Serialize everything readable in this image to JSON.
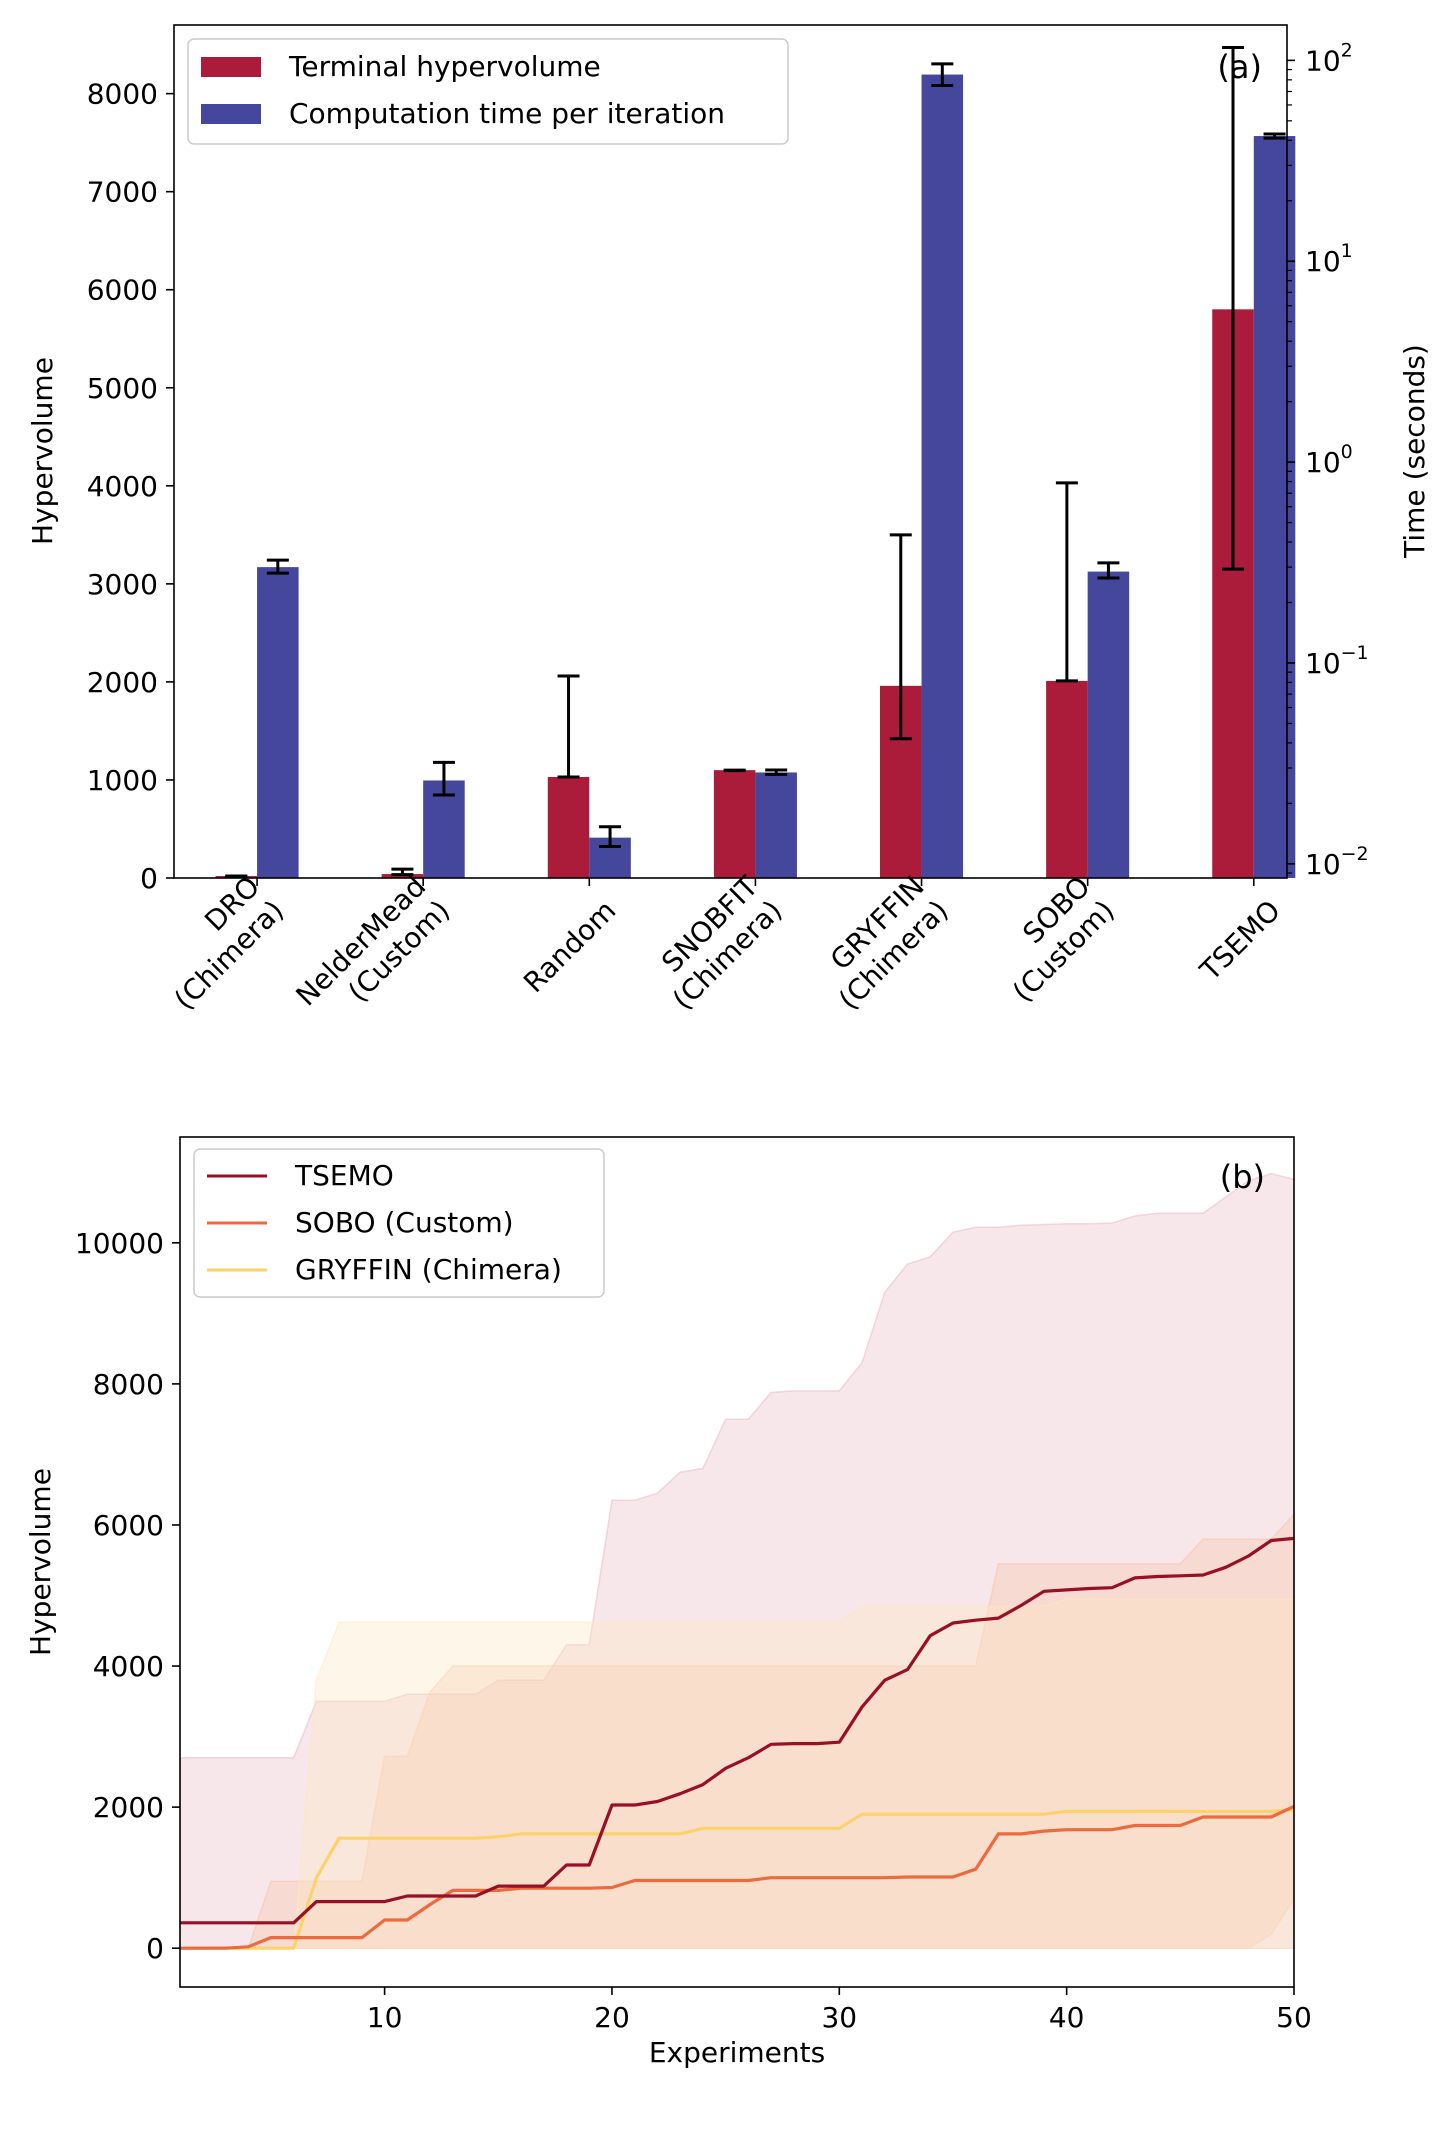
{
  "chart_data": [
    {
      "type": "bar",
      "panel_label": "(a)",
      "ylabel": "Hypervolume",
      "ylabel_right": "Time (seconds)",
      "ylim": [
        0,
        8700
      ],
      "y_ticks": [
        0,
        1000,
        2000,
        3000,
        4000,
        5000,
        6000,
        7000,
        8000
      ],
      "y2_scale": "log",
      "y2lim": [
        0.0085,
        150
      ],
      "y2_ticks": [
        {
          "value": 0.01,
          "base": "10",
          "exp": "−2"
        },
        {
          "value": 0.1,
          "base": "10",
          "exp": "−1"
        },
        {
          "value": 1,
          "base": "10",
          "exp": "0"
        },
        {
          "value": 10,
          "base": "10",
          "exp": "1"
        },
        {
          "value": 100,
          "base": "10",
          "exp": "2"
        }
      ],
      "categories": [
        [
          "DRO",
          "(Chimera)"
        ],
        [
          "NelderMead",
          "(Custom)"
        ],
        [
          "Random"
        ],
        [
          "SNOBFIT",
          "(Chimera)"
        ],
        [
          "GRYFFIN",
          "(Chimera)"
        ],
        [
          "SOBO",
          "(Custom)"
        ],
        [
          "TSEMO"
        ]
      ],
      "legend_position": "top-left",
      "series": [
        {
          "name": "Terminal hypervolume",
          "axis": "left",
          "color": "#aa1c3a",
          "values": [
            20,
            40,
            1030,
            1100,
            1960,
            2010,
            5800
          ],
          "err_low": [
            20,
            35,
            1030,
            1095,
            1420,
            2010,
            3150
          ],
          "err_high": [
            20,
            90,
            2060,
            1100,
            3500,
            4030,
            8470
          ]
        },
        {
          "name": "Computation time per iteration",
          "axis": "right",
          "color": "#45479c",
          "values": [
            0.3,
            0.026,
            0.0135,
            0.0285,
            85,
            0.285,
            42
          ],
          "err_low": [
            0.28,
            0.022,
            0.0122,
            0.0279,
            75,
            0.265,
            41
          ],
          "err_high": [
            0.325,
            0.032,
            0.0153,
            0.0293,
            96,
            0.315,
            43
          ]
        }
      ]
    },
    {
      "type": "line",
      "panel_label": "(b)",
      "xlabel": "Experiments",
      "ylabel": "Hypervolume",
      "xlim": [
        1,
        50
      ],
      "ylim": [
        -550,
        11500
      ],
      "x_ticks": [
        10,
        20,
        30,
        40,
        50
      ],
      "y_ticks": [
        0,
        2000,
        4000,
        6000,
        8000,
        10000
      ],
      "legend_position": "top-left",
      "series": [
        {
          "name": "TSEMO",
          "color": "#990f26",
          "band_color": "#e8b7c2",
          "x": [
            1,
            2,
            3,
            4,
            5,
            6,
            7,
            8,
            9,
            10,
            11,
            12,
            13,
            14,
            15,
            16,
            17,
            18,
            19,
            20,
            21,
            22,
            23,
            24,
            25,
            26,
            27,
            28,
            29,
            30,
            31,
            32,
            33,
            34,
            35,
            36,
            37,
            38,
            39,
            40,
            41,
            42,
            43,
            44,
            45,
            46,
            47,
            48,
            49,
            50
          ],
          "values": [
            360,
            360,
            360,
            360,
            360,
            360,
            660,
            660,
            660,
            660,
            740,
            740,
            740,
            740,
            880,
            880,
            880,
            1180,
            1180,
            2030,
            2030,
            2080,
            2190,
            2320,
            2550,
            2700,
            2890,
            2900,
            2900,
            2920,
            3420,
            3800,
            3950,
            4430,
            4610,
            4650,
            4680,
            4860,
            5060,
            5080,
            5100,
            5110,
            5250,
            5270,
            5280,
            5290,
            5400,
            5560,
            5780,
            5810
          ],
          "band_low": [
            0,
            0,
            0,
            0,
            0,
            0,
            0,
            0,
            0,
            0,
            0,
            0,
            0,
            0,
            0,
            0,
            0,
            0,
            0,
            0,
            0,
            0,
            0,
            0,
            0,
            0,
            0,
            0,
            0,
            0,
            0,
            0,
            0,
            0,
            0,
            0,
            0,
            0,
            0,
            0,
            0,
            0,
            0,
            0,
            0,
            0,
            0,
            0,
            0,
            0
          ],
          "band_high": [
            2700,
            2700,
            2700,
            2700,
            2700,
            2700,
            3500,
            3500,
            3500,
            3500,
            3600,
            3600,
            3600,
            3600,
            3800,
            3800,
            3800,
            4300,
            4300,
            6350,
            6350,
            6450,
            6750,
            6800,
            7500,
            7500,
            7880,
            7900,
            7900,
            7900,
            8300,
            9300,
            9700,
            9800,
            10150,
            10220,
            10220,
            10250,
            10260,
            10270,
            10270,
            10280,
            10380,
            10420,
            10420,
            10420,
            10650,
            10880,
            10980,
            10900
          ]
        },
        {
          "name": "SOBO (Custom)",
          "color": "#ec6a3f",
          "band_color": "#f7c4a6",
          "x": [
            1,
            2,
            3,
            4,
            5,
            6,
            7,
            8,
            9,
            10,
            11,
            12,
            13,
            14,
            15,
            16,
            17,
            18,
            19,
            20,
            21,
            22,
            23,
            24,
            25,
            26,
            27,
            28,
            29,
            30,
            31,
            32,
            33,
            34,
            35,
            36,
            37,
            38,
            39,
            40,
            41,
            42,
            43,
            44,
            45,
            46,
            47,
            48,
            49,
            50
          ],
          "values": [
            0,
            0,
            0,
            20,
            150,
            150,
            150,
            150,
            150,
            400,
            400,
            620,
            820,
            820,
            820,
            850,
            850,
            850,
            850,
            860,
            960,
            960,
            960,
            960,
            960,
            960,
            1000,
            1000,
            1000,
            1000,
            1000,
            1000,
            1010,
            1010,
            1010,
            1120,
            1620,
            1620,
            1660,
            1680,
            1680,
            1680,
            1740,
            1740,
            1740,
            1860,
            1860,
            1860,
            1860,
            2010
          ],
          "band_low": [
            0,
            0,
            0,
            0,
            0,
            0,
            0,
            0,
            0,
            0,
            0,
            0,
            0,
            0,
            0,
            0,
            0,
            0,
            0,
            0,
            0,
            0,
            0,
            0,
            0,
            0,
            0,
            0,
            0,
            0,
            0,
            0,
            0,
            0,
            0,
            0,
            0,
            0,
            0,
            0,
            0,
            0,
            0,
            0,
            0,
            0,
            0,
            0,
            200,
            700
          ],
          "band_high": [
            0,
            0,
            0,
            0,
            950,
            950,
            950,
            950,
            950,
            2720,
            2720,
            3630,
            4000,
            4000,
            4000,
            4000,
            4000,
            4000,
            4000,
            4000,
            4000,
            4000,
            4000,
            4000,
            4000,
            4000,
            4000,
            4000,
            4000,
            4000,
            4000,
            4000,
            4000,
            4000,
            4000,
            4000,
            5450,
            5450,
            5450,
            5450,
            5450,
            5450,
            5450,
            5450,
            5450,
            5800,
            5800,
            5800,
            5800,
            6150
          ]
        },
        {
          "name": "GRYFFIN (Chimera)",
          "color": "#fbd26b",
          "band_color": "#fde7bf",
          "x": [
            1,
            2,
            3,
            4,
            5,
            6,
            7,
            8,
            9,
            10,
            11,
            12,
            13,
            14,
            15,
            16,
            17,
            18,
            19,
            20,
            21,
            22,
            23,
            24,
            25,
            26,
            27,
            28,
            29,
            30,
            31,
            32,
            33,
            34,
            35,
            36,
            37,
            38,
            39,
            40,
            41,
            42,
            43,
            44,
            45,
            46,
            47,
            48,
            49,
            50
          ],
          "values": [
            0,
            0,
            0,
            0,
            0,
            0,
            1000,
            1560,
            1560,
            1560,
            1560,
            1560,
            1560,
            1560,
            1580,
            1620,
            1620,
            1620,
            1620,
            1620,
            1620,
            1620,
            1620,
            1700,
            1700,
            1700,
            1700,
            1700,
            1700,
            1700,
            1900,
            1900,
            1900,
            1900,
            1900,
            1900,
            1900,
            1900,
            1900,
            1940,
            1940,
            1940,
            1940,
            1940,
            1940,
            1940,
            1940,
            1940,
            1940,
            1960
          ],
          "band_low": [
            0,
            0,
            0,
            0,
            0,
            0,
            0,
            0,
            0,
            0,
            0,
            0,
            0,
            0,
            0,
            0,
            0,
            0,
            0,
            0,
            0,
            0,
            0,
            0,
            0,
            0,
            0,
            0,
            0,
            0,
            0,
            0,
            0,
            0,
            0,
            0,
            0,
            0,
            0,
            0,
            0,
            0,
            0,
            0,
            0,
            0,
            0,
            0,
            0,
            0
          ],
          "band_high": [
            0,
            0,
            0,
            0,
            0,
            0,
            3800,
            4620,
            4620,
            4620,
            4620,
            4620,
            4620,
            4620,
            4620,
            4620,
            4620,
            4620,
            4620,
            4620,
            4620,
            4620,
            4620,
            4620,
            4620,
            4620,
            4620,
            4620,
            4620,
            4620,
            4850,
            4850,
            4850,
            4850,
            4850,
            4850,
            4850,
            4850,
            4850,
            4950,
            4950,
            4950,
            4950,
            4950,
            4950,
            4950,
            4950,
            4950,
            4950,
            4950
          ]
        }
      ]
    }
  ]
}
